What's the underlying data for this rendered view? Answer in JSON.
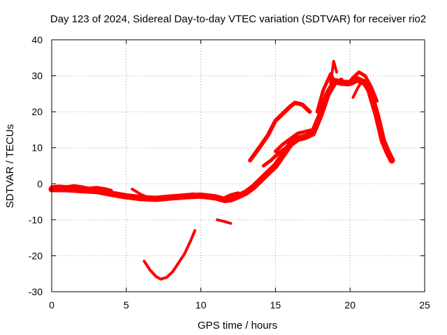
{
  "chart_data": {
    "type": "line",
    "title": "Day 123 of 2024, Sidereal Day-to-day VTEC variation (SDTVAR) for receiver rio2",
    "xlabel": "GPS time / hours",
    "ylabel": "SDTVAR / TECUs",
    "xlim": [
      0,
      25
    ],
    "ylim": [
      -30,
      40
    ],
    "xticks": [
      0,
      5,
      10,
      15,
      20,
      25
    ],
    "yticks": [
      -30,
      -20,
      -10,
      0,
      10,
      20,
      30,
      40
    ],
    "grid": true,
    "color": "#ff0000",
    "series": [
      {
        "name": "main-band",
        "width": 9,
        "x": [
          0,
          1,
          2,
          3,
          4,
          5,
          6,
          7,
          8,
          9,
          10,
          11,
          11.6,
          12,
          12.5,
          13,
          13.5,
          14,
          14.5,
          15,
          15.5,
          16,
          16.5,
          17,
          17.5,
          18,
          18.5,
          19,
          19.5,
          20,
          20.5,
          21,
          21.3,
          21.8,
          22.2,
          22.5,
          22.8
        ],
        "y": [
          -1.5,
          -1.5,
          -1.8,
          -2,
          -2.8,
          -3.5,
          -4,
          -4.2,
          -3.8,
          -3.5,
          -3.3,
          -3.8,
          -4.5,
          -4.3,
          -3.5,
          -2.5,
          -1,
          1,
          3,
          5,
          8,
          11,
          12.5,
          13,
          14,
          19,
          25,
          28.5,
          28,
          28,
          29,
          28,
          26,
          19,
          12,
          9,
          6.5
        ]
      },
      {
        "name": "segment-a",
        "width": 4,
        "x": [
          0,
          0.5,
          1,
          1.5,
          2,
          2.5,
          3,
          3.5,
          4
        ],
        "y": [
          -0.8,
          -0.6,
          -0.8,
          -0.5,
          -0.8,
          -1.2,
          -1,
          -1.3,
          -1.8
        ]
      },
      {
        "name": "segment-b",
        "width": 4,
        "x": [
          5.4,
          6,
          6.6,
          7,
          7.5,
          8,
          8.5,
          9,
          9.5,
          10,
          10.5,
          11,
          11.5,
          12,
          12.5
        ],
        "y": [
          -1.5,
          -3,
          -4,
          -4.5,
          -4,
          -3.5,
          -3.2,
          -3,
          -2.8,
          -3,
          -3.2,
          -3.5,
          -4,
          -3,
          -2.5
        ]
      },
      {
        "name": "segment-c",
        "width": 6,
        "x": [
          13.3,
          14,
          14.5,
          15,
          15.5,
          16,
          16.3,
          16.8,
          17.3
        ],
        "y": [
          6.5,
          10.5,
          13.5,
          17.5,
          19.5,
          21.5,
          22.5,
          22,
          20
        ]
      },
      {
        "name": "segment-d",
        "width": 5,
        "x": [
          15,
          15.5,
          16,
          16.5,
          17,
          17.5
        ],
        "y": [
          9,
          11,
          12.5,
          14,
          14.5,
          15
        ]
      },
      {
        "name": "segment-e",
        "width": 5,
        "x": [
          14.2,
          14.7,
          15.2,
          15.7,
          16.2
        ],
        "y": [
          5,
          6.5,
          8.5,
          10,
          11.5
        ]
      },
      {
        "name": "segment-f",
        "width": 5,
        "x": [
          17.8,
          18.2,
          18.7,
          19,
          19.4,
          19.8,
          20.2,
          20.6,
          21,
          21.4,
          21.8
        ],
        "y": [
          20,
          26,
          30.5,
          28,
          29,
          27.5,
          29.5,
          31,
          30,
          27,
          23
        ]
      },
      {
        "name": "segment-g",
        "width": 4,
        "x": [
          18.7,
          18.9,
          19.1
        ],
        "y": [
          28,
          34,
          31
        ]
      },
      {
        "name": "segment-h",
        "width": 4,
        "x": [
          20.2,
          20.5,
          20.8,
          21.1,
          21.4
        ],
        "y": [
          24,
          26.5,
          28.5,
          27,
          25
        ]
      },
      {
        "name": "arc",
        "width": 4,
        "x": [
          6.2,
          6.6,
          7,
          7.3,
          7.7,
          8.1,
          8.5,
          8.9,
          9.3,
          9.6
        ],
        "y": [
          -21.5,
          -24,
          -25.8,
          -26.5,
          -26,
          -24.5,
          -22,
          -19.5,
          -16,
          -13
        ]
      },
      {
        "name": "short-dash",
        "width": 4,
        "x": [
          11.1,
          11.5,
          12
        ],
        "y": [
          -10,
          -10.4,
          -11
        ]
      }
    ]
  }
}
